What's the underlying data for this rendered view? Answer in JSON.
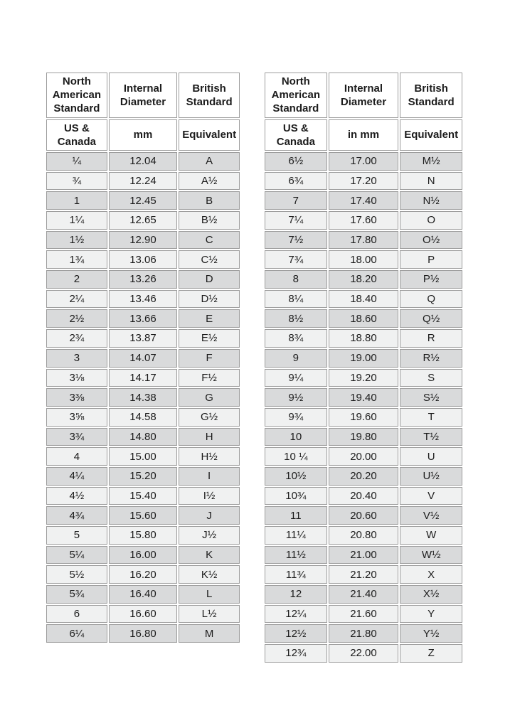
{
  "page": {
    "description": "Ring size conversion chart with two side-by-side tables",
    "background_color": "#ffffff"
  },
  "colors": {
    "row_dark": "#d9dadb",
    "row_light": "#f0f1f1",
    "cell_border": "#9d9d9d",
    "header_background": "#ffffff",
    "text": "#1c1c1c"
  },
  "tables": [
    {
      "id": "left",
      "headers": {
        "row1": [
          "North American Standard",
          "Internal Diameter",
          "British Standard"
        ],
        "row2": [
          "US & Canada",
          "mm",
          "Equivalent"
        ]
      },
      "rows": [
        [
          "¼",
          "12.04",
          "A"
        ],
        [
          "¾",
          "12.24",
          "A½"
        ],
        [
          "1",
          "12.45",
          "B"
        ],
        [
          "1¼",
          "12.65",
          "B½"
        ],
        [
          "1½",
          "12.90",
          "C"
        ],
        [
          "1¾",
          "13.06",
          "C½"
        ],
        [
          "2",
          "13.26",
          "D"
        ],
        [
          "2¼",
          "13.46",
          "D½"
        ],
        [
          "2½",
          "13.66",
          "E"
        ],
        [
          "2¾",
          "13.87",
          "E½"
        ],
        [
          "3",
          "14.07",
          "F"
        ],
        [
          "3⅛",
          "14.17",
          "F½"
        ],
        [
          "3⅜",
          "14.38",
          "G"
        ],
        [
          "3⅝",
          "14.58",
          "G½"
        ],
        [
          "3¾",
          "14.80",
          "H"
        ],
        [
          "4",
          "15.00",
          "H½"
        ],
        [
          "4¼",
          "15.20",
          "I"
        ],
        [
          "4½",
          "15.40",
          "I½"
        ],
        [
          "4¾",
          "15.60",
          "J"
        ],
        [
          "5",
          "15.80",
          "J½"
        ],
        [
          "5¼",
          "16.00",
          "K"
        ],
        [
          "5½",
          "16.20",
          "K½"
        ],
        [
          "5¾",
          "16.40",
          "L"
        ],
        [
          "6",
          "16.60",
          "L½"
        ],
        [
          "6¼",
          "16.80",
          "M"
        ]
      ]
    },
    {
      "id": "right",
      "headers": {
        "row1": [
          "North American Standard",
          "Internal Diameter",
          "British Standard"
        ],
        "row2": [
          "US & Canada",
          "in mm",
          "Equivalent"
        ]
      },
      "rows": [
        [
          "6½",
          "17.00",
          "M½"
        ],
        [
          "6¾",
          "17.20",
          "N"
        ],
        [
          "7",
          "17.40",
          "N½"
        ],
        [
          "7¼",
          "17.60",
          "O"
        ],
        [
          "7½",
          "17.80",
          "O½"
        ],
        [
          "7¾",
          "18.00",
          "P"
        ],
        [
          "8",
          "18.20",
          "P½"
        ],
        [
          "8¼",
          "18.40",
          "Q"
        ],
        [
          "8½",
          "18.60",
          "Q½"
        ],
        [
          "8¾",
          "18.80",
          "R"
        ],
        [
          "9",
          "19.00",
          "R½"
        ],
        [
          "9¼",
          "19.20",
          "S"
        ],
        [
          "9½",
          "19.40",
          "S½"
        ],
        [
          "9¾",
          "19.60",
          "T"
        ],
        [
          "10",
          "19.80",
          "T½"
        ],
        [
          "10 ¼",
          "20.00",
          "U"
        ],
        [
          "10½",
          "20.20",
          "U½"
        ],
        [
          "10¾",
          "20.40",
          "V"
        ],
        [
          "11",
          "20.60",
          "V½"
        ],
        [
          "11¼",
          "20.80",
          "W"
        ],
        [
          "11½",
          "21.00",
          "W½"
        ],
        [
          "11¾",
          "21.20",
          "X"
        ],
        [
          "12",
          "21.40",
          "X½"
        ],
        [
          "12¼",
          "21.60",
          "Y"
        ],
        [
          "12½",
          "21.80",
          "Y½"
        ],
        [
          "12¾",
          "22.00",
          "Z"
        ]
      ]
    }
  ]
}
